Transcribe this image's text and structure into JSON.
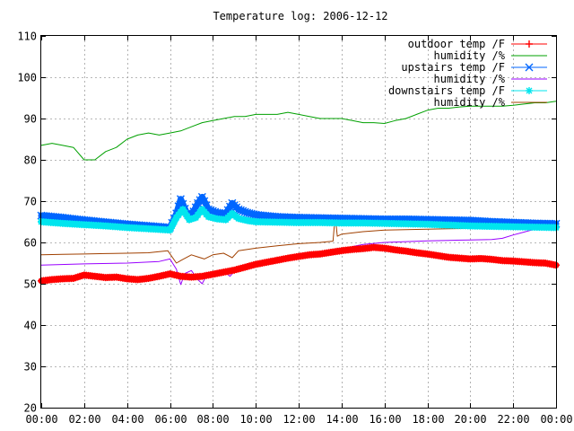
{
  "chart_data": {
    "type": "line",
    "title": "Temperature log: 2006-12-12",
    "xlabel": "",
    "ylabel": "",
    "xlim": [
      0,
      24
    ],
    "ylim": [
      20,
      110
    ],
    "x_ticks": [
      "00:00",
      "02:00",
      "04:00",
      "06:00",
      "08:00",
      "10:00",
      "12:00",
      "14:00",
      "16:00",
      "18:00",
      "20:00",
      "22:00",
      "00:00"
    ],
    "y_ticks": [
      "20",
      "30",
      "40",
      "50",
      "60",
      "70",
      "80",
      "90",
      "100",
      "110"
    ],
    "grid": true,
    "legend_position": "top-right",
    "series": [
      {
        "name": "outdoor temp /F",
        "color": "#ff0000",
        "marker": "plus",
        "points": [
          [
            0,
            50.7
          ],
          [
            0.5,
            51
          ],
          [
            1,
            51.2
          ],
          [
            1.5,
            51.3
          ],
          [
            2,
            52.1
          ],
          [
            2.5,
            51.8
          ],
          [
            3,
            51.5
          ],
          [
            3.5,
            51.6
          ],
          [
            4,
            51.2
          ],
          [
            4.5,
            51
          ],
          [
            5,
            51.3
          ],
          [
            5.5,
            51.8
          ],
          [
            6,
            52.4
          ],
          [
            6.5,
            51.8
          ],
          [
            7,
            51.6
          ],
          [
            7.5,
            51.8
          ],
          [
            8,
            52.3
          ],
          [
            8.5,
            52.8
          ],
          [
            9,
            53.3
          ],
          [
            9.5,
            54
          ],
          [
            10,
            54.7
          ],
          [
            10.5,
            55.2
          ],
          [
            11,
            55.7
          ],
          [
            11.5,
            56.2
          ],
          [
            12,
            56.6
          ],
          [
            12.5,
            57
          ],
          [
            13,
            57.2
          ],
          [
            13.5,
            57.6
          ],
          [
            14,
            58
          ],
          [
            14.5,
            58.3
          ],
          [
            15,
            58.5
          ],
          [
            15.5,
            58.8
          ],
          [
            16,
            58.6
          ],
          [
            16.5,
            58.2
          ],
          [
            17,
            57.9
          ],
          [
            17.5,
            57.5
          ],
          [
            18,
            57.2
          ],
          [
            18.5,
            56.8
          ],
          [
            19,
            56.4
          ],
          [
            19.5,
            56.2
          ],
          [
            20,
            56
          ],
          [
            20.5,
            56.1
          ],
          [
            21,
            55.9
          ],
          [
            21.5,
            55.6
          ],
          [
            22,
            55.5
          ],
          [
            22.5,
            55.3
          ],
          [
            23,
            55.1
          ],
          [
            23.5,
            55
          ],
          [
            24,
            54.5
          ]
        ]
      },
      {
        "name": "humidity /%",
        "color": "#00a000",
        "marker": "none",
        "points": [
          [
            0,
            83.5
          ],
          [
            0.5,
            84
          ],
          [
            1,
            83.5
          ],
          [
            1.5,
            83
          ],
          [
            2,
            80
          ],
          [
            2.5,
            80
          ],
          [
            3,
            82
          ],
          [
            3.5,
            83
          ],
          [
            4,
            85
          ],
          [
            4.5,
            86
          ],
          [
            5,
            86.5
          ],
          [
            5.5,
            86
          ],
          [
            6,
            86.5
          ],
          [
            6.5,
            87
          ],
          [
            7,
            88
          ],
          [
            7.5,
            89
          ],
          [
            8,
            89.5
          ],
          [
            8.5,
            90
          ],
          [
            9,
            90.5
          ],
          [
            9.5,
            90.5
          ],
          [
            10,
            91
          ],
          [
            10.5,
            91
          ],
          [
            11,
            91
          ],
          [
            11.5,
            91.5
          ],
          [
            12,
            91
          ],
          [
            12.5,
            90.5
          ],
          [
            13,
            90
          ],
          [
            13.5,
            90
          ],
          [
            14,
            90
          ],
          [
            14.5,
            89.5
          ],
          [
            15,
            89
          ],
          [
            15.5,
            89
          ],
          [
            16,
            88.8
          ],
          [
            16.5,
            89.5
          ],
          [
            17,
            90
          ],
          [
            17.5,
            91
          ],
          [
            18,
            92
          ],
          [
            18.5,
            92.5
          ],
          [
            19,
            92.5
          ],
          [
            19.5,
            92.8
          ],
          [
            20,
            93
          ],
          [
            20.5,
            93
          ],
          [
            21,
            93
          ],
          [
            21.5,
            93
          ],
          [
            22,
            93.2
          ],
          [
            22.5,
            93.5
          ],
          [
            23,
            93.8
          ],
          [
            23.5,
            93.8
          ],
          [
            24,
            94.2
          ]
        ]
      },
      {
        "name": "upstairs temp /F",
        "color": "#0066ff",
        "marker": "cross",
        "points": [
          [
            0,
            66.5
          ],
          [
            1,
            66
          ],
          [
            2,
            65.4
          ],
          [
            3,
            64.9
          ],
          [
            4,
            64.4
          ],
          [
            5,
            64
          ],
          [
            6,
            63.6
          ],
          [
            6.3,
            67
          ],
          [
            6.5,
            70.5
          ],
          [
            6.8,
            67
          ],
          [
            7,
            66.5
          ],
          [
            7.3,
            69.5
          ],
          [
            7.5,
            71
          ],
          [
            7.8,
            68
          ],
          [
            8.2,
            67.2
          ],
          [
            8.6,
            67
          ],
          [
            8.9,
            69.5
          ],
          [
            9.2,
            68
          ],
          [
            9.6,
            67.2
          ],
          [
            10,
            66.7
          ],
          [
            11,
            66.2
          ],
          [
            12,
            66
          ],
          [
            13,
            65.9
          ],
          [
            14,
            65.8
          ],
          [
            15,
            65.7
          ],
          [
            16,
            65.6
          ],
          [
            17,
            65.6
          ],
          [
            18,
            65.5
          ],
          [
            19,
            65.4
          ],
          [
            20,
            65.3
          ],
          [
            21,
            65
          ],
          [
            22,
            64.8
          ],
          [
            23,
            64.6
          ],
          [
            24,
            64.5
          ]
        ]
      },
      {
        "name": "humidity /%",
        "color": "#9900ff",
        "marker": "none",
        "points": [
          [
            0,
            54.5
          ],
          [
            2,
            54.8
          ],
          [
            4,
            55
          ],
          [
            5.5,
            55.4
          ],
          [
            6,
            56
          ],
          [
            6.3,
            53.5
          ],
          [
            6.5,
            49.8
          ],
          [
            6.7,
            52.5
          ],
          [
            7,
            53.2
          ],
          [
            7.3,
            51
          ],
          [
            7.5,
            50
          ],
          [
            7.7,
            52
          ],
          [
            8,
            52.8
          ],
          [
            8.5,
            53
          ],
          [
            8.8,
            51.8
          ],
          [
            9,
            53
          ],
          [
            10,
            54.5
          ],
          [
            11,
            55.5
          ],
          [
            12,
            56.8
          ],
          [
            13,
            57.5
          ],
          [
            14,
            58
          ],
          [
            14.5,
            59
          ],
          [
            15,
            59.5
          ],
          [
            16,
            60
          ],
          [
            17,
            60.2
          ],
          [
            18,
            60.4
          ],
          [
            19,
            60.5
          ],
          [
            20,
            60.6
          ],
          [
            21,
            60.7
          ],
          [
            21.5,
            61
          ],
          [
            22,
            61.8
          ],
          [
            22.5,
            62.5
          ],
          [
            23,
            63.2
          ],
          [
            23.5,
            64
          ],
          [
            24,
            64.5
          ]
        ]
      },
      {
        "name": "downstairs temp /F",
        "color": "#00e5ee",
        "marker": "star",
        "points": [
          [
            0,
            65
          ],
          [
            1,
            64.6
          ],
          [
            2,
            64.3
          ],
          [
            3,
            64
          ],
          [
            4,
            63.6
          ],
          [
            5,
            63.3
          ],
          [
            6,
            63
          ],
          [
            6.3,
            66
          ],
          [
            6.6,
            68
          ],
          [
            6.9,
            65.5
          ],
          [
            7.2,
            66
          ],
          [
            7.5,
            68
          ],
          [
            7.8,
            66.2
          ],
          [
            8.2,
            65.7
          ],
          [
            8.6,
            65.5
          ],
          [
            8.9,
            67
          ],
          [
            9.2,
            65.8
          ],
          [
            9.6,
            65.3
          ],
          [
            10,
            65
          ],
          [
            11,
            64.9
          ],
          [
            12,
            64.8
          ],
          [
            13,
            64.8
          ],
          [
            14,
            64.7
          ],
          [
            15,
            64.7
          ],
          [
            16,
            64.6
          ],
          [
            17,
            64.5
          ],
          [
            18,
            64.4
          ],
          [
            19,
            64.2
          ],
          [
            20,
            64
          ],
          [
            21,
            63.9
          ],
          [
            22,
            63.8
          ],
          [
            23,
            63.7
          ],
          [
            24,
            63.6
          ]
        ]
      },
      {
        "name": "humidity /%",
        "color": "#a04000",
        "marker": "none",
        "points": [
          [
            0,
            57
          ],
          [
            1,
            57.1
          ],
          [
            2,
            57.2
          ],
          [
            3,
            57.3
          ],
          [
            4,
            57.4
          ],
          [
            5,
            57.5
          ],
          [
            5.9,
            58
          ],
          [
            6.1,
            56.5
          ],
          [
            6.3,
            55
          ],
          [
            6.5,
            55.6
          ],
          [
            7,
            57
          ],
          [
            7.3,
            56.5
          ],
          [
            7.6,
            56
          ],
          [
            8,
            57
          ],
          [
            8.5,
            57.4
          ],
          [
            8.9,
            56.3
          ],
          [
            9.2,
            58
          ],
          [
            10,
            58.6
          ],
          [
            11,
            59.2
          ],
          [
            12,
            59.7
          ],
          [
            13,
            60
          ],
          [
            13.6,
            60.3
          ],
          [
            13.7,
            66.5
          ],
          [
            13.8,
            61.5
          ],
          [
            14,
            62
          ],
          [
            15,
            62.6
          ],
          [
            16,
            63
          ],
          [
            17,
            63.1
          ],
          [
            18,
            63.2
          ],
          [
            19,
            63.3
          ],
          [
            20,
            63.4
          ],
          [
            21,
            63.4
          ],
          [
            22,
            63.5
          ],
          [
            23,
            63.6
          ],
          [
            24,
            63.6
          ]
        ]
      }
    ]
  }
}
